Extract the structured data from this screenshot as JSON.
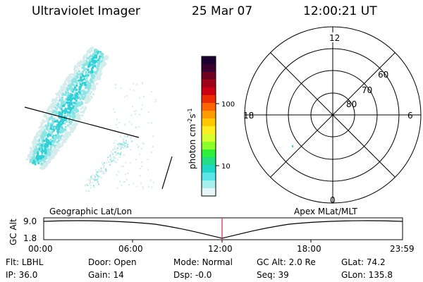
{
  "header": {
    "instrument": "Ultraviolet Imager",
    "date": "25 Mar 07",
    "time": "12:00:21 UT"
  },
  "colorbar": {
    "unit": "photon cm",
    "unit_exp1": "-2",
    "unit_s": "s",
    "unit_exp2": "-1",
    "ticks": [
      "100",
      "10"
    ],
    "colors": [
      "#1a0033",
      "#3a0030",
      "#6e0020",
      "#a00018",
      "#cc0010",
      "#ee2a00",
      "#ff6400",
      "#ff9a00",
      "#ffc800",
      "#ffee22",
      "#d8ff30",
      "#8cff2a",
      "#2fef3a",
      "#22dd88",
      "#20d8c8",
      "#5ae6e6",
      "#a8f0f0",
      "#e6f6f6"
    ]
  },
  "polar": {
    "mlt_labels": {
      "top": "12",
      "left": "18",
      "right": "6",
      "bottom": "0"
    },
    "lat_labels": [
      "60",
      "70",
      "80"
    ]
  },
  "timeline": {
    "axis_label": "GC Alt",
    "left_label": "Geographic Lat/Lon",
    "right_label": "Apex MLat/MLT",
    "y_ticks": [
      "9.0",
      "1.8"
    ],
    "x_ticks": [
      "00:00",
      "06:00",
      "12:00",
      "18:00",
      "23:59"
    ]
  },
  "footer": {
    "row1": [
      {
        "label": "Flt:",
        "value": "LBHL"
      },
      {
        "label": "Door:",
        "value": "Open"
      },
      {
        "label": "Mode:",
        "value": "Normal"
      },
      {
        "label": "GC Alt:",
        "value": "2.0 Re"
      },
      {
        "label": "GLat:",
        "value": "74.2"
      }
    ],
    "row2": [
      {
        "label": "IP:",
        "value": "36.0"
      },
      {
        "label": "Gain:",
        "value": "14"
      },
      {
        "label": "Dsp:",
        "value": "-0.0"
      },
      {
        "label": "Seq:",
        "value": "39"
      },
      {
        "label": "GLon:",
        "value": "135.8"
      }
    ]
  },
  "image_colors": {
    "core": "#30d0d8",
    "mid": "#8ce4e4",
    "faint": "#d4ecec",
    "marker": "#d02a40"
  }
}
